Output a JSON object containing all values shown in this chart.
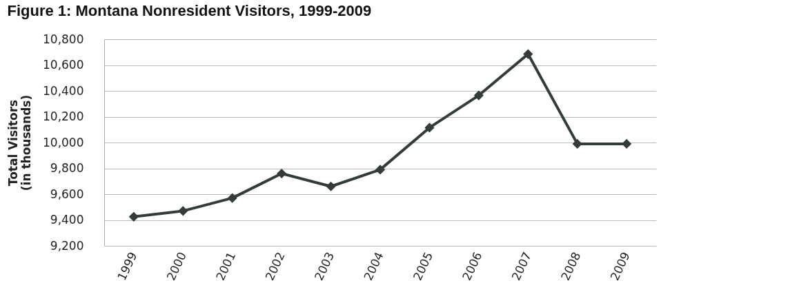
{
  "chart_data": {
    "type": "line",
    "title": "Figure 1: Montana Nonresident Visitors, 1999-2009",
    "ylabel": "Total Visitors (in thousands)",
    "categories": [
      "1999",
      "2000",
      "2001",
      "2002",
      "2003",
      "2004",
      "2005",
      "2006",
      "2007",
      "2008",
      "2009"
    ],
    "series": [
      {
        "color": "#333b3b",
        "values": [
          9425,
          9470,
          9570,
          9760,
          9660,
          9790,
          10115,
          10365,
          10685,
          9990,
          9990
        ]
      }
    ],
    "ylim": [
      9200,
      10800
    ],
    "yticks": [
      {
        "value": 9200,
        "label": "9,200"
      },
      {
        "value": 9400,
        "label": "9,400"
      },
      {
        "value": 9600,
        "label": "9,600"
      },
      {
        "value": 9800,
        "label": "9,800"
      },
      {
        "value": 10000,
        "label": "10,000"
      },
      {
        "value": 10200,
        "label": "10,200"
      },
      {
        "value": 10400,
        "label": "10,400"
      },
      {
        "value": 10600,
        "label": "10,600"
      },
      {
        "value": 10800,
        "label": "10,800"
      }
    ],
    "grid": "y",
    "marker": "diamond",
    "line_style": "solid"
  }
}
